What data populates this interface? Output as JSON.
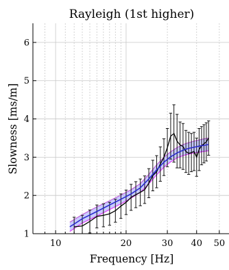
{
  "chart_data": {
    "type": "line",
    "title": "Rayleigh (1st higher)",
    "xlabel": "Frequency [Hz]",
    "ylabel": "Slowness [ms/m]",
    "xscale": "log",
    "xlim": [
      8,
      55
    ],
    "ylim": [
      1,
      6.5
    ],
    "x_ticks": [
      10,
      20,
      30,
      40,
      50
    ],
    "x_tick_labels": [
      "10",
      "20",
      "30",
      "40",
      "50"
    ],
    "y_ticks": [
      1,
      2,
      3,
      4,
      5,
      6
    ],
    "y_tick_labels": [
      "1",
      "2",
      "3",
      "4",
      "5",
      "6"
    ],
    "grid": true,
    "colors": {
      "observed": "#000000",
      "model_band": "#9ea3ff",
      "model_ensemble": "#c060d8",
      "model_best": "#2a2acc",
      "model_outline": "#e040ff",
      "grid": "#c8c8c8"
    },
    "series": [
      {
        "kind": "observed-with-error-bars",
        "x": [
          12,
          13,
          14,
          15,
          16,
          17,
          18,
          19,
          20,
          21,
          22,
          23,
          24,
          25,
          26,
          27,
          28,
          29,
          30,
          31,
          32,
          33,
          34,
          35,
          36,
          37,
          38,
          39,
          40,
          41,
          42,
          43,
          44,
          45
        ],
        "y": [
          1.18,
          1.2,
          1.32,
          1.45,
          1.48,
          1.52,
          1.6,
          1.72,
          1.82,
          1.95,
          2.02,
          2.08,
          2.15,
          2.32,
          2.52,
          2.62,
          2.82,
          3.0,
          3.25,
          3.55,
          3.62,
          3.42,
          3.32,
          3.28,
          3.15,
          3.1,
          3.12,
          3.15,
          3.0,
          3.2,
          3.3,
          3.35,
          3.4,
          3.5
        ],
        "err": [
          0.25,
          0.28,
          0.3,
          0.3,
          0.3,
          0.3,
          0.3,
          0.32,
          0.32,
          0.34,
          0.34,
          0.35,
          0.36,
          0.38,
          0.4,
          0.42,
          0.45,
          0.48,
          0.5,
          0.6,
          0.75,
          0.7,
          0.6,
          0.6,
          0.55,
          0.55,
          0.5,
          0.5,
          0.5,
          0.55,
          0.5,
          0.5,
          0.5,
          0.45
        ]
      },
      {
        "kind": "model-band",
        "x": [
          11.5,
          13,
          15,
          17,
          19,
          21,
          23,
          25,
          27,
          29,
          31,
          33,
          35,
          37,
          39,
          41,
          43,
          45
        ],
        "lower": [
          1.06,
          1.28,
          1.46,
          1.63,
          1.78,
          1.93,
          2.08,
          2.3,
          2.54,
          2.74,
          2.88,
          2.98,
          3.04,
          3.08,
          3.11,
          3.13,
          3.15,
          3.17
        ],
        "upper": [
          1.3,
          1.5,
          1.7,
          1.86,
          2.01,
          2.15,
          2.31,
          2.55,
          2.8,
          3.0,
          3.14,
          3.25,
          3.33,
          3.38,
          3.42,
          3.45,
          3.48,
          3.5
        ]
      },
      {
        "kind": "model-best",
        "x": [
          11.5,
          13,
          15,
          17,
          19,
          21,
          23,
          25,
          27,
          29,
          31,
          33,
          35,
          37,
          39,
          41,
          43,
          45
        ],
        "y": [
          1.18,
          1.39,
          1.58,
          1.75,
          1.9,
          2.04,
          2.2,
          2.43,
          2.67,
          2.87,
          3.01,
          3.11,
          3.18,
          3.23,
          3.26,
          3.29,
          3.31,
          3.33
        ]
      }
    ]
  }
}
